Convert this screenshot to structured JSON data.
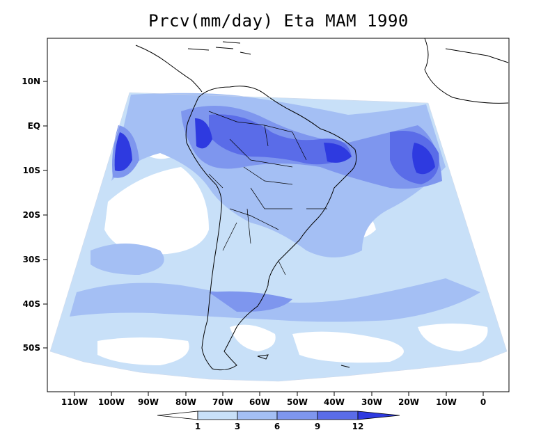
{
  "title": "Prcv(mm/day) Eta MAM 1990",
  "lat_labels": [
    "10N",
    "EQ",
    "10S",
    "20S",
    "30S",
    "40S",
    "50S"
  ],
  "lon_labels": [
    "110W",
    "100W",
    "90W",
    "80W",
    "70W",
    "60W",
    "50W",
    "40W",
    "30W",
    "20W",
    "10W",
    "0"
  ],
  "legend": {
    "levels": [
      "1",
      "3",
      "6",
      "9",
      "12"
    ],
    "colors": [
      "#ffffff",
      "#c8e0f8",
      "#a4bff4",
      "#7e96ee",
      "#5a6ce8",
      "#2e3ae0"
    ]
  },
  "colors": {
    "land_outline": "#000000",
    "ocean_band_light": "#c8e0f8",
    "band_mid": "#a4bff4",
    "band_high": "#7e96ee",
    "band_peak": "#2e3ae0"
  }
}
